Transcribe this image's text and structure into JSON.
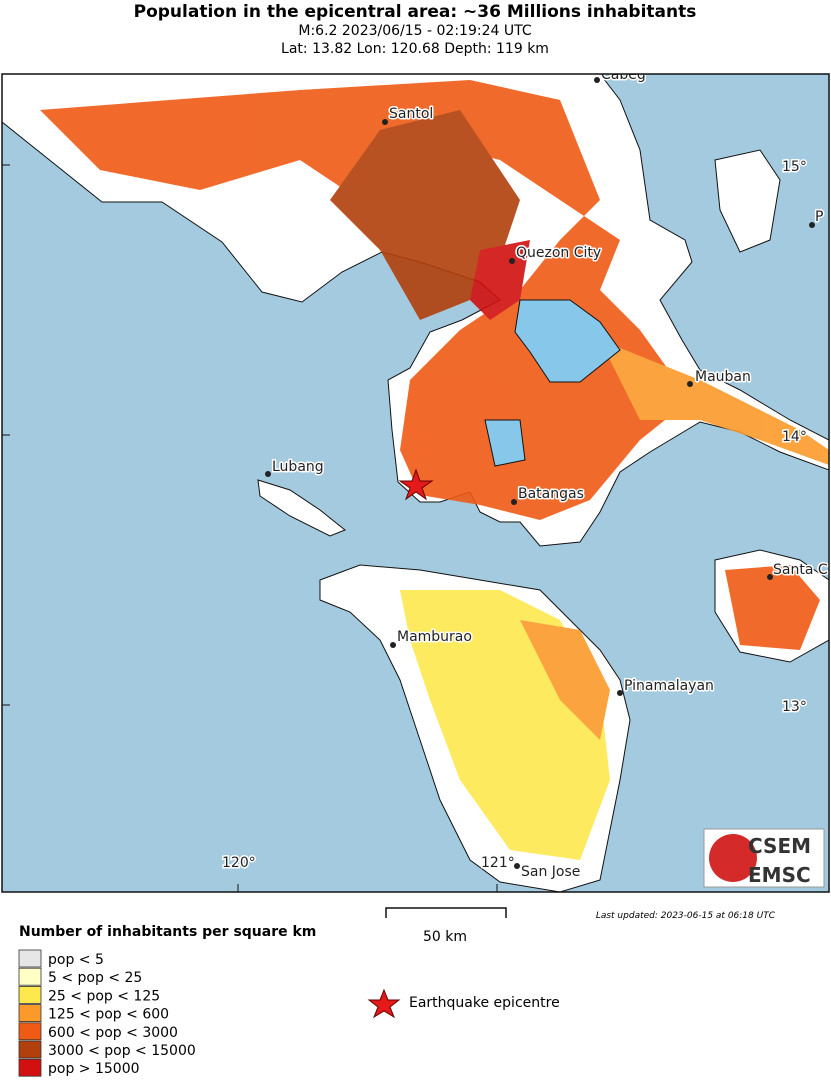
{
  "header": {
    "title": "Population in the epicentral area: ~36 Millions inhabitants",
    "subtitle": "M:6.2 2023/06/15 - 02:19:24 UTC",
    "location": "Lat: 13.82 Lon: 120.68 Depth: 119 km"
  },
  "map": {
    "places": [
      "Cabeg",
      "Santol",
      "Quezon City",
      "P",
      "Mauban",
      "Lubang",
      "Batangas",
      "Santa C",
      "Mamburao",
      "Pinamalayan",
      "San Jose"
    ],
    "lat_labels": [
      "15°",
      "14°",
      "13°"
    ],
    "lon_labels": [
      "120°",
      "121°"
    ],
    "scale_label": "50 km",
    "last_updated": "Last updated: 2023-06-15 at 06:18 UTC",
    "logo": [
      "CSEM",
      "EMSC"
    ]
  },
  "legend": {
    "title": "Number of inhabitants per square km",
    "items": [
      {
        "label": "pop < 5",
        "color": "#e6e6e6"
      },
      {
        "label": "5 < pop < 25",
        "color": "#ffffc6"
      },
      {
        "label": "25 < pop < 125",
        "color": "#fde84e"
      },
      {
        "label": "125 < pop < 600",
        "color": "#fb9a2b"
      },
      {
        "label": "600 < pop < 3000",
        "color": "#ef5a15"
      },
      {
        "label": "3000 < pop < 15000",
        "color": "#b2400c"
      },
      {
        "label": "pop > 15000",
        "color": "#d21010"
      }
    ],
    "epicentre_label": "Earthquake epicentre"
  }
}
